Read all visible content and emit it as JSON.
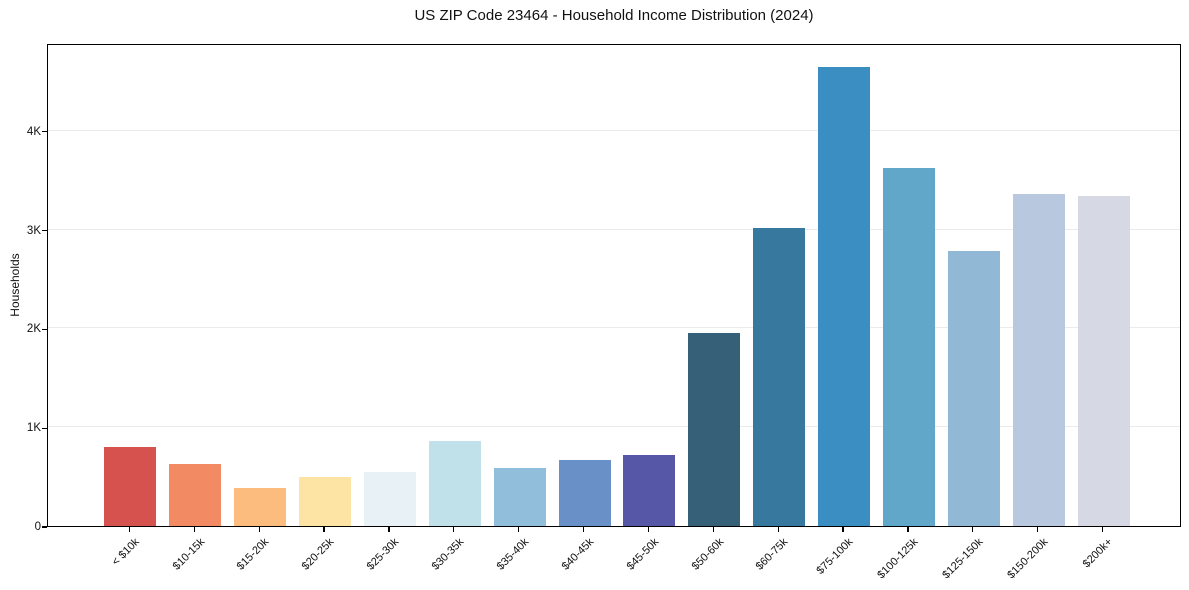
{
  "chart_data": {
    "type": "bar",
    "title": "US ZIP Code 23464 - Household Income Distribution (2024)",
    "xlabel": "",
    "ylabel": "Households",
    "categories": [
      "< $10k",
      "$10-15k",
      "$15-20k",
      "$20-25k",
      "$25-30k",
      "$30-35k",
      "$35-40k",
      "$40-45k",
      "$45-50k",
      "$50-60k",
      "$60-75k",
      "$75-100k",
      "$100-125k",
      "$125-150k",
      "$150-200k",
      "$200k+"
    ],
    "values": [
      800,
      630,
      385,
      500,
      550,
      860,
      585,
      670,
      720,
      1955,
      3015,
      4650,
      3620,
      2780,
      3360,
      3340
    ],
    "bar_colors": [
      "#d6524e",
      "#f28a63",
      "#fcbc7d",
      "#fde4a4",
      "#e8f2f6",
      "#c0e1ea",
      "#91bedb",
      "#6a91c7",
      "#5757a7",
      "#366077",
      "#37789e",
      "#3a8ec2",
      "#60a7ca",
      "#91b8d5",
      "#b7c8df",
      "#d6d9e4"
    ],
    "ylim": [
      0,
      4890
    ],
    "yticks": [
      {
        "value": 0,
        "label": "0"
      },
      {
        "value": 1000,
        "label": "1K"
      },
      {
        "value": 2000,
        "label": "2K"
      },
      {
        "value": 3000,
        "label": "3K"
      },
      {
        "value": 4000,
        "label": "4K"
      }
    ],
    "grid": "horizontal",
    "gridline_color": "#ebebeb",
    "legend": "none",
    "x_tick_label_rotation_deg": 45
  }
}
